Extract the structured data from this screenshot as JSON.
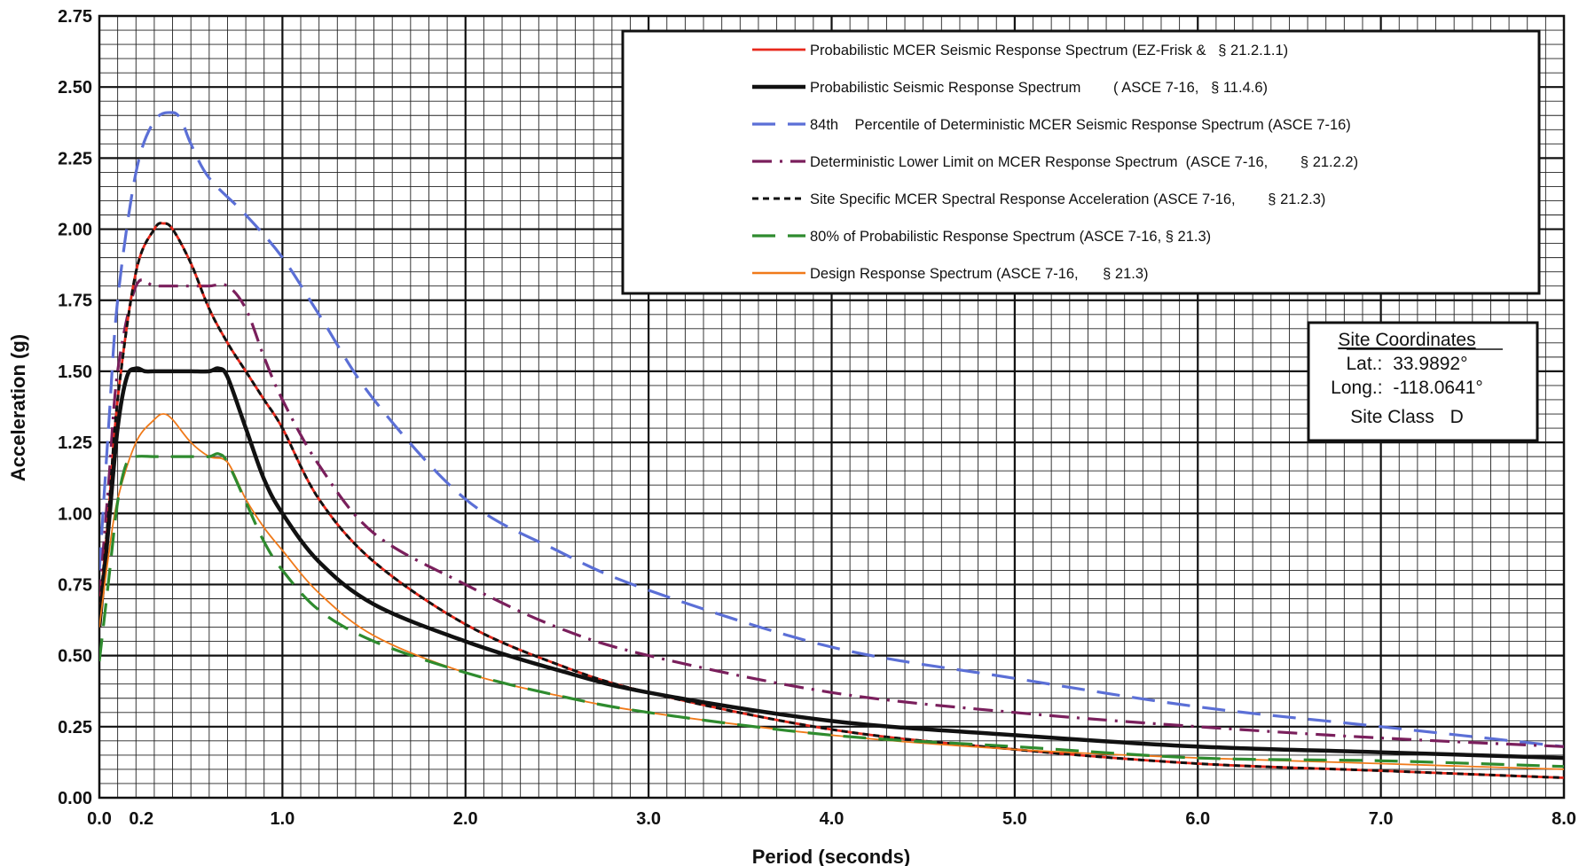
{
  "chart_data": {
    "type": "line",
    "xlabel": "Period (seconds)",
    "ylabel": "Acceleration (g)",
    "xlim": [
      0,
      8
    ],
    "ylim": [
      0,
      2.75
    ],
    "grid": true,
    "x_ticks": [
      {
        "value": 0,
        "label": "0.0"
      },
      {
        "value": 0.2,
        "label": "0.2"
      },
      {
        "value": 1,
        "label": "1.0"
      },
      {
        "value": 2,
        "label": "2.0"
      },
      {
        "value": 3,
        "label": "3.0"
      },
      {
        "value": 4,
        "label": "4.0"
      },
      {
        "value": 5,
        "label": "5.0"
      },
      {
        "value": 6,
        "label": "6.0"
      },
      {
        "value": 7,
        "label": "7.0"
      },
      {
        "value": 8,
        "label": "8.0"
      }
    ],
    "y_ticks": [
      {
        "value": 0,
        "label": "0.00"
      },
      {
        "value": 0.25,
        "label": "0.25"
      },
      {
        "value": 0.5,
        "label": "0.50"
      },
      {
        "value": 0.75,
        "label": "0.75"
      },
      {
        "value": 1.0,
        "label": "1.00"
      },
      {
        "value": 1.25,
        "label": "1.25"
      },
      {
        "value": 1.5,
        "label": "1.50"
      },
      {
        "value": 1.75,
        "label": "1.75"
      },
      {
        "value": 2.0,
        "label": "2.00"
      },
      {
        "value": 2.25,
        "label": "2.25"
      },
      {
        "value": 2.5,
        "label": "2.50"
      },
      {
        "value": 2.75,
        "label": "2.75"
      }
    ],
    "legend_position": "top-right",
    "series": [
      {
        "name": "Probabilistic MCER Seismic Response Spectrum (EZ-Frisk &   § 21.2.1.1)",
        "color": "#e8291c",
        "style": "solid",
        "x": [
          0,
          0.05,
          0.1,
          0.2,
          0.3,
          0.35,
          0.4,
          0.5,
          0.6,
          0.7,
          0.8,
          0.9,
          1.0,
          1.2,
          1.5,
          2.0,
          2.5,
          3.0,
          4.0,
          5.0,
          6.0,
          7.0,
          8.0
        ],
        "y": [
          0.65,
          1.0,
          1.4,
          1.85,
          2.0,
          2.02,
          2.0,
          1.88,
          1.72,
          1.6,
          1.5,
          1.4,
          1.3,
          1.05,
          0.83,
          0.61,
          0.47,
          0.37,
          0.24,
          0.17,
          0.12,
          0.095,
          0.07
        ]
      },
      {
        "name": "Probabilistic Seismic Response Spectrum        ( ASCE 7-16,   § 11.4.6)",
        "color": "#111111",
        "style": "solid-thick",
        "x": [
          0,
          0.05,
          0.1,
          0.15,
          0.2,
          0.25,
          0.3,
          0.4,
          0.5,
          0.6,
          0.65,
          0.7,
          0.8,
          0.9,
          1.0,
          1.2,
          1.5,
          2.0,
          2.5,
          3.0,
          4.0,
          5.0,
          6.0,
          7.0,
          8.0
        ],
        "y": [
          0.6,
          0.95,
          1.3,
          1.48,
          1.51,
          1.5,
          1.5,
          1.5,
          1.5,
          1.5,
          1.51,
          1.48,
          1.3,
          1.12,
          1.0,
          0.83,
          0.68,
          0.55,
          0.45,
          0.37,
          0.27,
          0.22,
          0.18,
          0.16,
          0.14
        ]
      },
      {
        "name": "84th    Percentile of Deterministic MCER Seismic Response Spectrum (ASCE 7-16)",
        "color": "#5b6fd6",
        "style": "long-dash",
        "x": [
          0,
          0.05,
          0.1,
          0.2,
          0.3,
          0.4,
          0.45,
          0.5,
          0.6,
          0.8,
          1.0,
          1.2,
          1.5,
          2.0,
          2.5,
          3.0,
          4.0,
          5.0,
          6.0,
          7.0,
          8.0
        ],
        "y": [
          0.8,
          1.3,
          1.75,
          2.2,
          2.38,
          2.41,
          2.38,
          2.3,
          2.18,
          2.05,
          1.9,
          1.7,
          1.4,
          1.05,
          0.87,
          0.73,
          0.53,
          0.42,
          0.32,
          0.25,
          0.18
        ]
      },
      {
        "name": "Deterministic Lower Limit on MCER Response Spectrum  (ASCE 7-16,        § 21.2.2)",
        "color": "#7a1f5c",
        "style": "dash-dot",
        "x": [
          0,
          0.05,
          0.1,
          0.2,
          0.3,
          0.4,
          0.5,
          0.6,
          0.7,
          0.8,
          0.9,
          1.0,
          1.2,
          1.5,
          2.0,
          2.5,
          3.0,
          4.0,
          5.0,
          6.0,
          7.0,
          8.0
        ],
        "y": [
          0.7,
          1.1,
          1.5,
          1.8,
          1.8,
          1.8,
          1.8,
          1.8,
          1.8,
          1.72,
          1.55,
          1.4,
          1.17,
          0.93,
          0.75,
          0.6,
          0.5,
          0.37,
          0.3,
          0.25,
          0.21,
          0.18
        ]
      },
      {
        "name": "Site Specific MCER Spectral Response Acceleration (ASCE 7-16,        § 21.2.3)",
        "color": "#111111",
        "style": "short-dash",
        "x": [
          0,
          0.05,
          0.1,
          0.2,
          0.3,
          0.35,
          0.4,
          0.5,
          0.6,
          0.7,
          0.8,
          0.9,
          1.0,
          1.2,
          1.5,
          2.0,
          2.5,
          3.0,
          4.0,
          5.0,
          6.0,
          7.0,
          8.0
        ],
        "y": [
          0.65,
          1.0,
          1.4,
          1.85,
          2.0,
          2.02,
          2.0,
          1.88,
          1.72,
          1.6,
          1.5,
          1.4,
          1.3,
          1.05,
          0.83,
          0.61,
          0.47,
          0.37,
          0.24,
          0.17,
          0.12,
          0.095,
          0.07
        ]
      },
      {
        "name": "80% of Probabilistic Response Spectrum (ASCE 7-16, § 21.3)",
        "color": "#2e8b2e",
        "style": "long-dash",
        "x": [
          0,
          0.05,
          0.1,
          0.15,
          0.2,
          0.3,
          0.4,
          0.5,
          0.6,
          0.65,
          0.7,
          0.8,
          0.9,
          1.0,
          1.2,
          1.5,
          2.0,
          2.5,
          3.0,
          4.0,
          5.0,
          6.0,
          7.0,
          8.0
        ],
        "y": [
          0.48,
          0.76,
          1.04,
          1.18,
          1.2,
          1.2,
          1.2,
          1.2,
          1.2,
          1.21,
          1.18,
          1.04,
          0.9,
          0.8,
          0.66,
          0.55,
          0.44,
          0.36,
          0.3,
          0.22,
          0.18,
          0.14,
          0.13,
          0.11
        ]
      },
      {
        "name": "Design Response Spectrum (ASCE 7-16,      § 21.3)",
        "color": "#f07a1a",
        "style": "solid-thin",
        "x": [
          0,
          0.05,
          0.1,
          0.2,
          0.3,
          0.35,
          0.4,
          0.5,
          0.6,
          0.7,
          0.8,
          0.9,
          1.0,
          1.2,
          1.5,
          2.0,
          2.5,
          3.0,
          4.0,
          5.0,
          6.0,
          7.0,
          8.0
        ],
        "y": [
          0.6,
          0.85,
          1.05,
          1.25,
          1.33,
          1.35,
          1.33,
          1.25,
          1.2,
          1.18,
          1.05,
          0.95,
          0.87,
          0.72,
          0.57,
          0.44,
          0.36,
          0.3,
          0.22,
          0.17,
          0.14,
          0.12,
          0.1
        ]
      }
    ],
    "annotation_box": {
      "title": "Site Coordinates",
      "lat_label": "Lat.:",
      "lat_value": "33.9892°",
      "long_label": "Long.:",
      "long_value": "-118.0641°",
      "site_class_label": "Site Class",
      "site_class_value": "D"
    }
  }
}
